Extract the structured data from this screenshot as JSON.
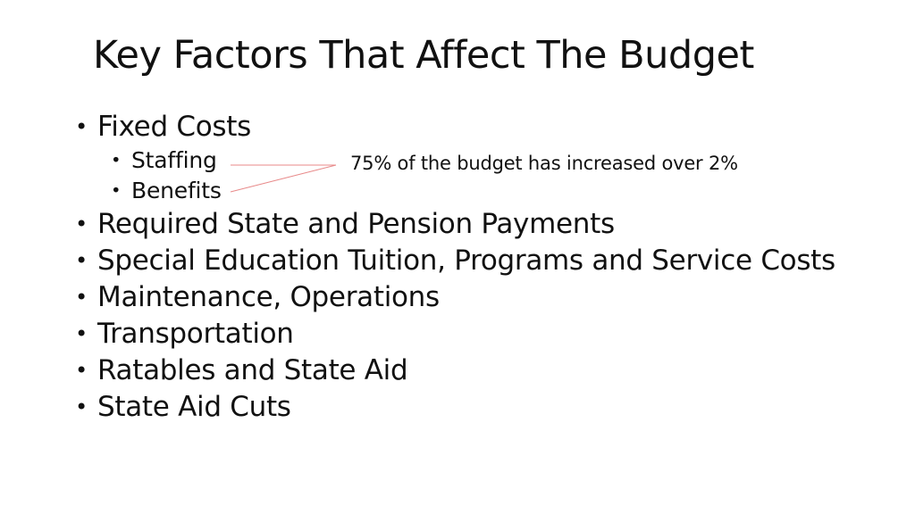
{
  "slide": {
    "title": "Key Factors That Affect The Budget",
    "bullets": [
      {
        "text": "Fixed Costs",
        "level": 1
      },
      {
        "text": "Staffing",
        "level": 2
      },
      {
        "text": "Benefits",
        "level": 2
      },
      {
        "text": "Required State and Pension Payments",
        "level": 1
      },
      {
        "text": "Special Education Tuition, Programs and Service Costs",
        "level": 1
      },
      {
        "text": "Maintenance, Operations",
        "level": 1
      },
      {
        "text": "Transportation",
        "level": 1
      },
      {
        "text": "Ratables and State Aid",
        "level": 1
      },
      {
        "text": "State Aid Cuts",
        "level": 1
      }
    ],
    "bullet_marker": "•",
    "annotation": "75% of the budget has increased over 2%",
    "connector_color": "#e88a8a"
  }
}
